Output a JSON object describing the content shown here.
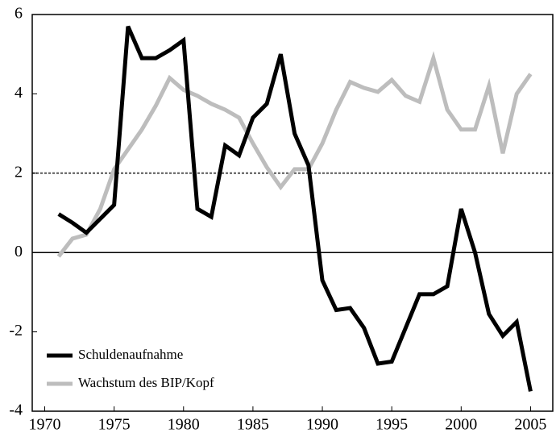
{
  "chart_data": {
    "type": "line",
    "x": [
      1971,
      1972,
      1973,
      1974,
      1975,
      1976,
      1977,
      1978,
      1979,
      1980,
      1981,
      1982,
      1983,
      1984,
      1985,
      1986,
      1987,
      1988,
      1989,
      1990,
      1991,
      1992,
      1993,
      1994,
      1995,
      1996,
      1997,
      1998,
      1999,
      2000,
      2001,
      2002,
      2003,
      2004,
      2005
    ],
    "series": [
      {
        "name": "Schuldenaufnahme",
        "color": "#000000",
        "values": [
          0.97,
          0.75,
          0.5,
          0.85,
          1.2,
          5.7,
          4.9,
          4.9,
          5.1,
          5.35,
          1.1,
          0.9,
          2.7,
          2.45,
          3.4,
          3.75,
          5.0,
          3.0,
          2.2,
          -0.7,
          -1.45,
          -1.4,
          -1.9,
          -2.8,
          -2.75,
          -1.9,
          -1.05,
          -1.05,
          -0.85,
          1.1,
          0.0,
          -1.55,
          -2.1,
          -1.75,
          -3.5
        ]
      },
      {
        "name": "Wachstum des BIP/Kopf",
        "color": "#bdbdbd",
        "values": [
          -0.1,
          0.35,
          0.45,
          1.1,
          2.1,
          2.6,
          3.1,
          3.7,
          4.4,
          4.1,
          3.95,
          3.75,
          3.6,
          3.4,
          2.75,
          2.15,
          1.65,
          2.1,
          2.1,
          2.75,
          3.6,
          4.3,
          4.15,
          4.05,
          4.35,
          3.95,
          3.8,
          4.9,
          3.6,
          3.1,
          3.1,
          4.2,
          2.5,
          4.0,
          4.5
        ]
      }
    ],
    "xlim": [
      1969.1,
      2006.6
    ],
    "xticks": [
      1970,
      1975,
      1980,
      1985,
      1990,
      1995,
      2000,
      2005
    ],
    "ylim": [
      -4,
      6
    ],
    "yticks": [
      -4,
      -2,
      0,
      2,
      4,
      6
    ],
    "hlines": [
      {
        "value": 2,
        "style": "dotted"
      },
      {
        "value": 0,
        "style": "solid"
      }
    ],
    "legend": "lower left",
    "grid": false
  }
}
